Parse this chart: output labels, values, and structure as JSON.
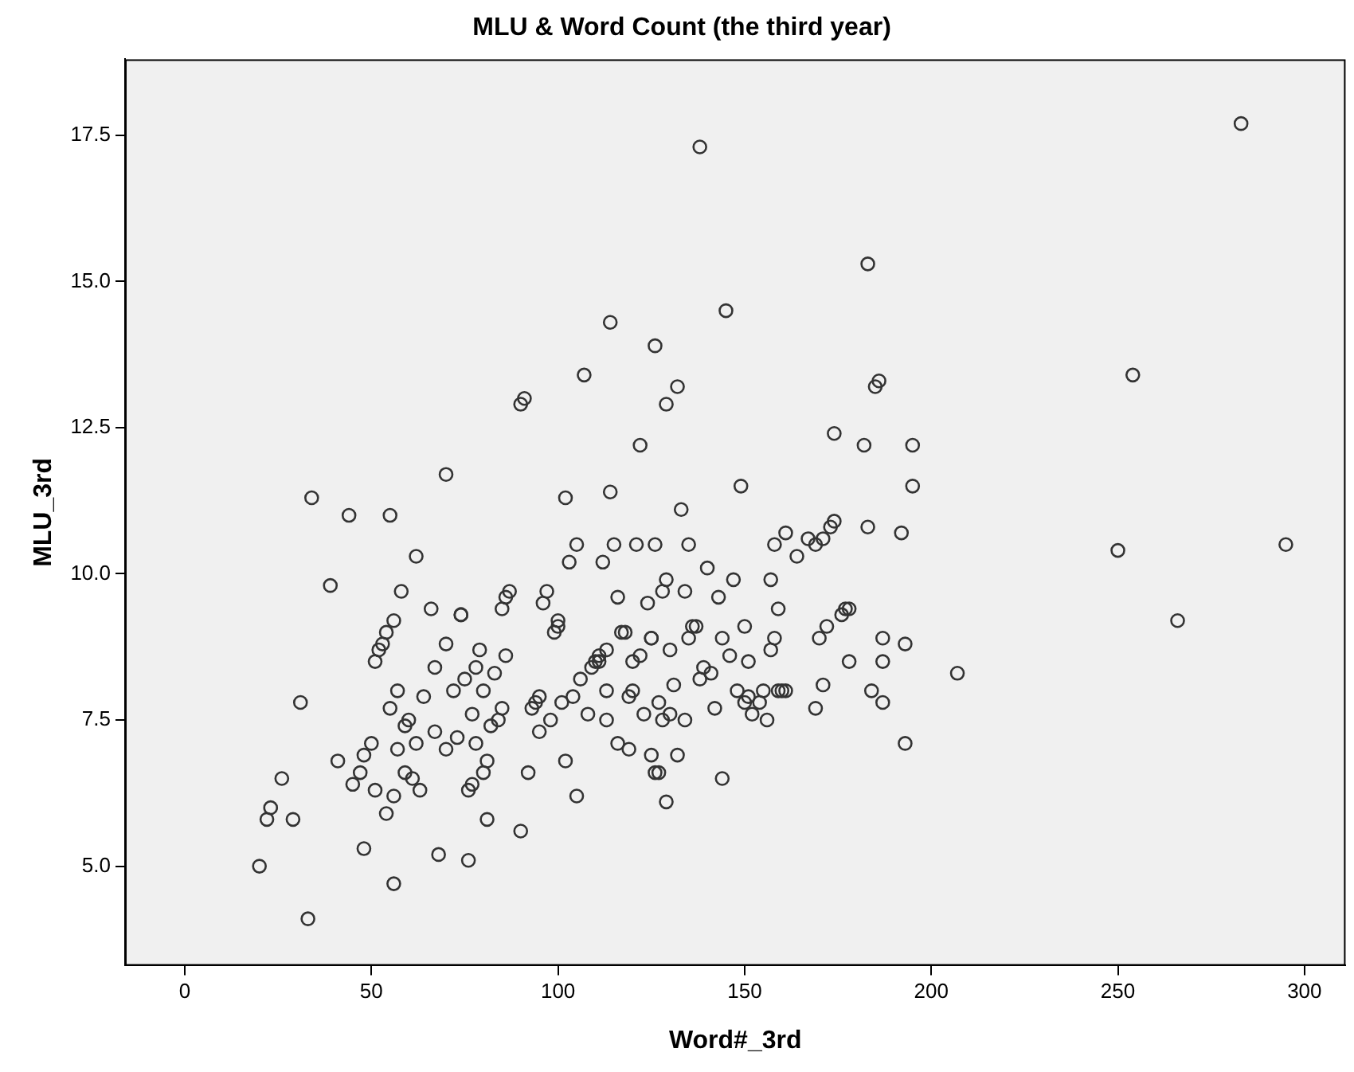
{
  "chart_data": {
    "type": "scatter",
    "title": "MLU & Word Count (the third year)",
    "xlabel": "Word#_3rd",
    "ylabel": "MLU_3rd",
    "xlim": [
      -16,
      311
    ],
    "xticks": [
      0,
      50,
      100,
      150,
      200,
      250,
      300
    ],
    "ylim": [
      3.3,
      18.8
    ],
    "yticks": [
      {
        "value": 5,
        "label": "5.0"
      },
      {
        "value": 7.5,
        "label": "7.5"
      },
      {
        "value": 10,
        "label": "10.0"
      },
      {
        "value": 12.5,
        "label": "12.5"
      },
      {
        "value": 15,
        "label": "15.0"
      },
      {
        "value": 17.5,
        "label": "17.5"
      }
    ],
    "grid": false,
    "legend": false,
    "marker": "circle",
    "series": [
      {
        "color": "#333333",
        "x": [
          20,
          33,
          22,
          23,
          26,
          29,
          31,
          34,
          39,
          41,
          44,
          45,
          47,
          48,
          48,
          50,
          51,
          51,
          52,
          53,
          54,
          54,
          55,
          55,
          56,
          56,
          56,
          57,
          57,
          58,
          59,
          59,
          60,
          61,
          62,
          62,
          63,
          64,
          66,
          67,
          67,
          68,
          70,
          70,
          70,
          72,
          73,
          74,
          74,
          75,
          76,
          76,
          77,
          77,
          78,
          78,
          79,
          80,
          80,
          81,
          81,
          82,
          83,
          84,
          85,
          85,
          86,
          86,
          87,
          90,
          90,
          91,
          92,
          93,
          94,
          95,
          95,
          96,
          97,
          98,
          99,
          100,
          100,
          101,
          102,
          102,
          103,
          104,
          105,
          105,
          106,
          107,
          108,
          109,
          110,
          111,
          111,
          112,
          113,
          113,
          113,
          114,
          114,
          115,
          116,
          116,
          117,
          118,
          119,
          119,
          120,
          120,
          121,
          122,
          122,
          123,
          124,
          125,
          125,
          125,
          126,
          126,
          126,
          127,
          127,
          128,
          128,
          129,
          129,
          129,
          130,
          130,
          131,
          132,
          132,
          133,
          134,
          134,
          135,
          135,
          136,
          137,
          138,
          138,
          139,
          140,
          141,
          142,
          143,
          144,
          144,
          145,
          146,
          147,
          148,
          149,
          150,
          150,
          151,
          151,
          152,
          154,
          155,
          156,
          157,
          157,
          158,
          158,
          159,
          159,
          160,
          161,
          161,
          164,
          167,
          169,
          169,
          170,
          171,
          171,
          172,
          173,
          174,
          174,
          176,
          177,
          178,
          178,
          182,
          183,
          183,
          184,
          185,
          186,
          187,
          187,
          187,
          192,
          193,
          193,
          195,
          195,
          207,
          250,
          254,
          266,
          283,
          295
        ],
        "values": [
          5.0,
          4.1,
          5.8,
          6.0,
          6.5,
          5.8,
          7.8,
          11.3,
          9.8,
          6.8,
          11.0,
          6.4,
          6.6,
          5.3,
          6.9,
          7.1,
          6.3,
          8.5,
          8.7,
          8.8,
          9.0,
          5.9,
          7.7,
          11.0,
          4.7,
          9.2,
          6.2,
          7.0,
          8.0,
          9.7,
          6.6,
          7.4,
          7.5,
          6.5,
          7.1,
          10.3,
          6.3,
          7.9,
          9.4,
          7.3,
          8.4,
          5.2,
          7.0,
          11.7,
          8.8,
          8.0,
          7.2,
          9.3,
          9.3,
          8.2,
          6.3,
          5.1,
          6.4,
          7.6,
          8.4,
          7.1,
          8.7,
          6.6,
          8.0,
          5.8,
          6.8,
          7.4,
          8.3,
          7.5,
          7.7,
          9.4,
          8.6,
          9.6,
          9.7,
          5.6,
          12.9,
          13.0,
          6.6,
          7.7,
          7.8,
          7.9,
          7.3,
          9.5,
          9.7,
          7.5,
          9.0,
          9.1,
          9.2,
          7.8,
          11.3,
          6.8,
          10.2,
          7.9,
          10.5,
          6.2,
          8.2,
          13.4,
          7.6,
          8.4,
          8.5,
          8.5,
          8.6,
          10.2,
          8.7,
          7.5,
          8.0,
          11.4,
          14.3,
          10.5,
          7.1,
          9.6,
          9.0,
          9.0,
          7.0,
          7.9,
          8.5,
          8.0,
          10.5,
          12.2,
          8.6,
          7.6,
          9.5,
          8.9,
          8.9,
          6.9,
          6.6,
          13.9,
          10.5,
          6.6,
          7.8,
          9.7,
          7.5,
          6.1,
          9.9,
          12.9,
          7.6,
          8.7,
          8.1,
          13.2,
          6.9,
          11.1,
          7.5,
          9.7,
          10.5,
          8.9,
          9.1,
          9.1,
          17.3,
          8.2,
          8.4,
          10.1,
          8.3,
          7.7,
          9.6,
          8.9,
          6.5,
          14.5,
          8.6,
          9.9,
          8.0,
          11.5,
          7.8,
          9.1,
          7.9,
          8.5,
          7.6,
          7.8,
          8.0,
          7.5,
          8.7,
          9.9,
          10.5,
          8.9,
          9.4,
          8.0,
          8.0,
          10.7,
          8.0,
          10.3,
          10.6,
          7.7,
          10.5,
          8.9,
          8.1,
          10.6,
          9.1,
          10.8,
          12.4,
          10.9,
          9.3,
          9.4,
          9.4,
          8.5,
          12.2,
          15.3,
          10.8,
          8.0,
          13.2,
          13.3,
          7.8,
          8.5,
          8.9,
          10.7,
          7.1,
          8.8,
          12.2,
          11.5,
          8.3,
          10.4,
          13.4,
          9.2,
          17.7,
          10.5
        ]
      }
    ]
  }
}
